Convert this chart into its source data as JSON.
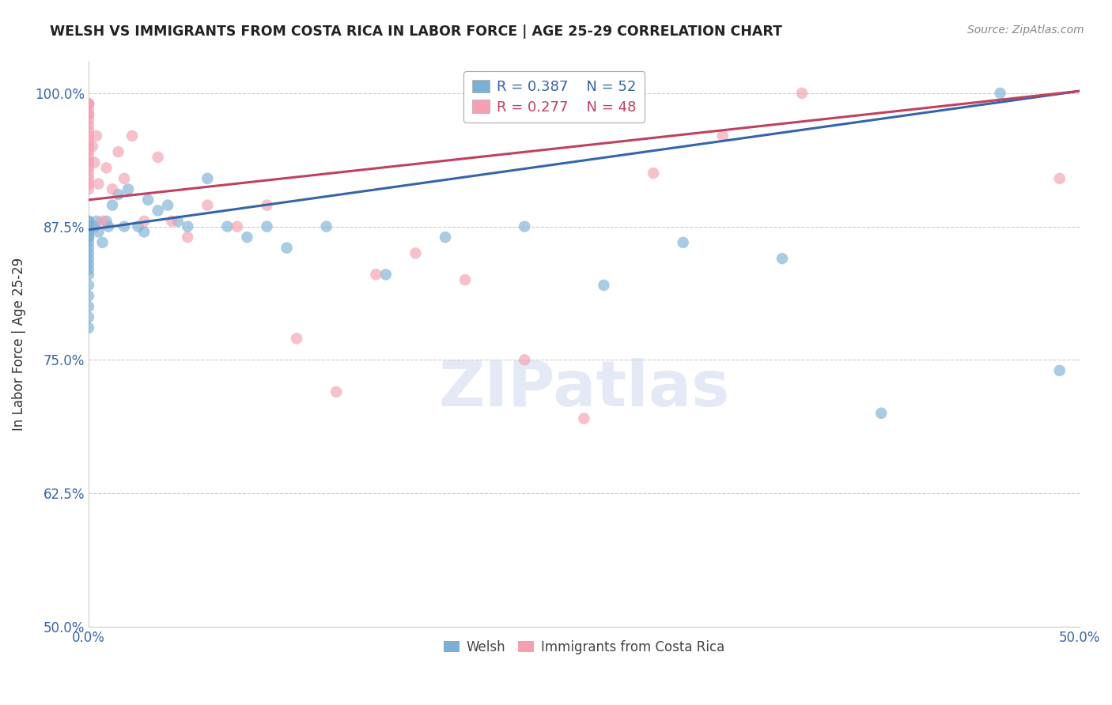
{
  "title": "WELSH VS IMMIGRANTS FROM COSTA RICA IN LABOR FORCE | AGE 25-29 CORRELATION CHART",
  "source": "Source: ZipAtlas.com",
  "ylabel": "In Labor Force | Age 25-29",
  "xlim": [
    0.0,
    0.5
  ],
  "ylim": [
    0.5,
    1.03
  ],
  "xticks": [
    0.0,
    0.5
  ],
  "xticklabels": [
    "0.0%",
    "50.0%"
  ],
  "yticks": [
    0.5,
    0.625,
    0.75,
    0.875,
    1.0
  ],
  "yticklabels": [
    "50.0%",
    "62.5%",
    "75.0%",
    "87.5%",
    "100.0%"
  ],
  "background_color": "#ffffff",
  "grid_color": "#cccccc",
  "welsh_color": "#7bafd4",
  "costa_rica_color": "#f4a0b0",
  "welsh_line_color": "#3565a8",
  "costa_rica_line_color": "#c04060",
  "welsh_R": 0.387,
  "welsh_N": 52,
  "costa_rica_R": 0.277,
  "costa_rica_N": 48,
  "welsh_line_x0": 0.0,
  "welsh_line_y0": 0.872,
  "welsh_line_x1": 0.5,
  "welsh_line_y1": 1.002,
  "cr_line_x0": 0.0,
  "cr_line_y0": 0.9,
  "cr_line_x1": 0.5,
  "cr_line_y1": 1.002,
  "welsh_x": [
    0.0,
    0.0,
    0.0,
    0.0,
    0.0,
    0.0,
    0.0,
    0.0,
    0.0,
    0.0,
    0.0,
    0.0,
    0.0,
    0.0,
    0.0,
    0.0,
    0.0,
    0.0,
    0.0,
    0.0,
    0.003,
    0.004,
    0.005,
    0.007,
    0.009,
    0.01,
    0.012,
    0.015,
    0.018,
    0.02,
    0.025,
    0.028,
    0.03,
    0.035,
    0.04,
    0.045,
    0.05,
    0.06,
    0.07,
    0.08,
    0.09,
    0.1,
    0.12,
    0.15,
    0.18,
    0.22,
    0.26,
    0.3,
    0.35,
    0.4,
    0.46,
    0.49
  ],
  "welsh_y": [
    0.88,
    0.875,
    0.87,
    0.865,
    0.86,
    0.855,
    0.85,
    0.845,
    0.84,
    0.835,
    0.83,
    0.82,
    0.81,
    0.8,
    0.79,
    0.78,
    0.88,
    0.875,
    0.87,
    0.865,
    0.875,
    0.88,
    0.87,
    0.86,
    0.88,
    0.875,
    0.895,
    0.905,
    0.875,
    0.91,
    0.875,
    0.87,
    0.9,
    0.89,
    0.895,
    0.88,
    0.875,
    0.92,
    0.875,
    0.865,
    0.875,
    0.855,
    0.875,
    0.83,
    0.865,
    0.875,
    0.82,
    0.86,
    0.845,
    0.7,
    1.0,
    0.74
  ],
  "costa_rica_x": [
    0.0,
    0.0,
    0.0,
    0.0,
    0.0,
    0.0,
    0.0,
    0.0,
    0.0,
    0.0,
    0.0,
    0.0,
    0.0,
    0.0,
    0.0,
    0.0,
    0.0,
    0.0,
    0.0,
    0.0,
    0.002,
    0.003,
    0.004,
    0.005,
    0.007,
    0.009,
    0.012,
    0.015,
    0.018,
    0.022,
    0.028,
    0.035,
    0.042,
    0.05,
    0.06,
    0.075,
    0.09,
    0.105,
    0.125,
    0.145,
    0.165,
    0.19,
    0.22,
    0.25,
    0.285,
    0.32,
    0.36,
    0.49
  ],
  "costa_rica_y": [
    0.99,
    0.99,
    0.99,
    0.985,
    0.98,
    0.98,
    0.975,
    0.97,
    0.965,
    0.96,
    0.955,
    0.95,
    0.945,
    0.94,
    0.935,
    0.93,
    0.925,
    0.92,
    0.915,
    0.91,
    0.95,
    0.935,
    0.96,
    0.915,
    0.88,
    0.93,
    0.91,
    0.945,
    0.92,
    0.96,
    0.88,
    0.94,
    0.88,
    0.865,
    0.895,
    0.875,
    0.895,
    0.77,
    0.72,
    0.83,
    0.85,
    0.825,
    0.75,
    0.695,
    0.925,
    0.96,
    1.0,
    0.92
  ]
}
